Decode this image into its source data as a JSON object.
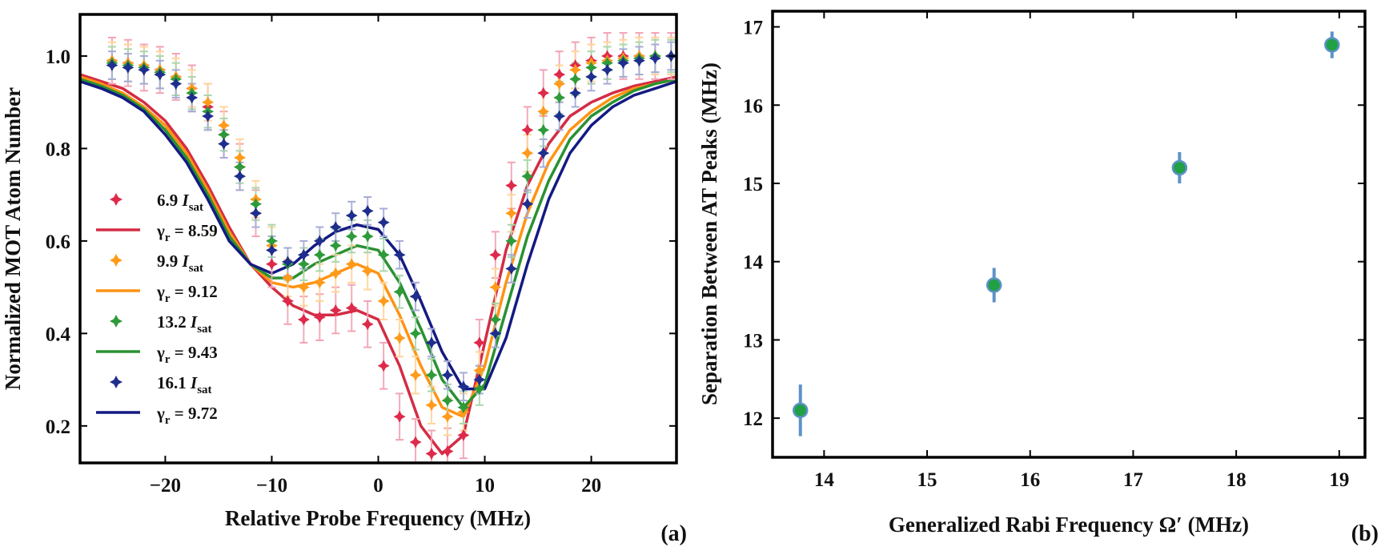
{
  "chart_data": [
    {
      "type": "scatter",
      "panel_label": "(a)",
      "xlabel": "Relative Probe Frequency (MHz)",
      "ylabel": "Normalized MOT Atom Number",
      "xlim": [
        -28,
        28
      ],
      "ylim": [
        0.12,
        1.09
      ],
      "xticks": [
        -20,
        -10,
        0,
        10,
        20
      ],
      "yticks": [
        0.2,
        0.4,
        0.6,
        0.8,
        1.0
      ],
      "xtick_labels": [
        "−20",
        "−10",
        "0",
        "10",
        "20"
      ],
      "ytick_labels": [
        "0.2",
        "0.4",
        "0.6",
        "0.8",
        "1.0"
      ],
      "grid": false,
      "legend_position": "left",
      "legend": [
        {
          "marker": "star",
          "color": "#DE2A4A",
          "text": "6.9 ",
          "italic": "I",
          "sub": "sat"
        },
        {
          "marker": "line",
          "color": "#D42C44",
          "text": "γ",
          "sub": "r",
          "value": " = 8.59"
        },
        {
          "marker": "star",
          "color": "#FF9A1A",
          "text": "9.9 ",
          "italic": "I",
          "sub": "sat"
        },
        {
          "marker": "line",
          "color": "#FF9312",
          "text": "γ",
          "sub": "r",
          "value": " = 9.12"
        },
        {
          "marker": "star",
          "color": "#2E9A3A",
          "text": "13.2 ",
          "italic": "I",
          "sub": "sat"
        },
        {
          "marker": "line",
          "color": "#2A9132",
          "text": "γ",
          "sub": "r",
          "value": " = 9.43"
        },
        {
          "marker": "star",
          "color": "#1E2E8C",
          "text": "16.1 ",
          "italic": "I",
          "sub": "sat"
        },
        {
          "marker": "line",
          "color": "#141A82",
          "text": "γ",
          "sub": "r",
          "value": " = 9.72"
        }
      ],
      "series": [
        {
          "name": "6.9 I_sat",
          "kind": "points",
          "color": "#DE2A4A",
          "error_color": "#F2A3B3",
          "x": [
            -25,
            -23.5,
            -22,
            -20.5,
            -19,
            -17.5,
            -16,
            -14.5,
            -13,
            -11.5,
            -10,
            -8.5,
            -7,
            -5.5,
            -4,
            -2.5,
            -1,
            0.5,
            2,
            3.5,
            5,
            6.5,
            8,
            9.5,
            11,
            12.5,
            14,
            15.5,
            17,
            18.5,
            20,
            21.5,
            23,
            24.5,
            26,
            27.5
          ],
          "y": [
            0.99,
            0.985,
            0.975,
            0.97,
            0.955,
            0.93,
            0.89,
            0.83,
            0.76,
            0.66,
            0.55,
            0.47,
            0.43,
            0.435,
            0.45,
            0.455,
            0.42,
            0.33,
            0.22,
            0.165,
            0.14,
            0.145,
            0.18,
            0.38,
            0.57,
            0.72,
            0.84,
            0.92,
            0.96,
            0.98,
            0.99,
            1.0,
            1.0,
            1.0,
            1.0,
            1.0
          ],
          "yerr": 0.05
        },
        {
          "name": "9.9 I_sat",
          "kind": "points",
          "color": "#FF9A1A",
          "error_color": "#FFD49A",
          "x": [
            -25,
            -23.5,
            -22,
            -20.5,
            -19,
            -17.5,
            -16,
            -14.5,
            -13,
            -11.5,
            -10,
            -8.5,
            -7,
            -5.5,
            -4,
            -2.5,
            -1,
            0.5,
            2,
            3.5,
            5,
            6.5,
            8,
            9.5,
            11,
            12.5,
            14,
            15.5,
            17,
            18.5,
            20,
            21.5,
            23,
            24.5,
            26,
            27.5
          ],
          "y": [
            0.99,
            0.985,
            0.98,
            0.97,
            0.955,
            0.93,
            0.9,
            0.85,
            0.78,
            0.69,
            0.59,
            0.52,
            0.5,
            0.51,
            0.53,
            0.55,
            0.535,
            0.47,
            0.39,
            0.31,
            0.245,
            0.22,
            0.23,
            0.32,
            0.5,
            0.66,
            0.79,
            0.88,
            0.94,
            0.97,
            0.985,
            0.99,
            0.995,
            1.0,
            1.0,
            1.0
          ],
          "yerr": 0.04
        },
        {
          "name": "13.2 I_sat",
          "kind": "points",
          "color": "#2E9A3A",
          "error_color": "#A9D6AD",
          "x": [
            -25,
            -23.5,
            -22,
            -20.5,
            -19,
            -17.5,
            -16,
            -14.5,
            -13,
            -11.5,
            -10,
            -8.5,
            -7,
            -5.5,
            -4,
            -2.5,
            -1,
            0.5,
            2,
            3.5,
            5,
            6.5,
            8,
            9.5,
            11,
            12.5,
            14,
            15.5,
            17,
            18.5,
            20,
            21.5,
            23,
            24.5,
            26,
            27.5
          ],
          "y": [
            0.985,
            0.98,
            0.975,
            0.965,
            0.95,
            0.92,
            0.88,
            0.83,
            0.76,
            0.68,
            0.6,
            0.55,
            0.55,
            0.57,
            0.59,
            0.61,
            0.61,
            0.57,
            0.49,
            0.4,
            0.31,
            0.255,
            0.24,
            0.28,
            0.43,
            0.6,
            0.74,
            0.84,
            0.91,
            0.95,
            0.975,
            0.985,
            0.99,
            0.995,
            1.0,
            1.0
          ],
          "yerr": 0.035
        },
        {
          "name": "16.1 I_sat",
          "kind": "points",
          "color": "#1E2E8C",
          "error_color": "#A6ACD6",
          "x": [
            -25,
            -23.5,
            -22,
            -20.5,
            -19,
            -17.5,
            -16,
            -14.5,
            -13,
            -11.5,
            -10,
            -8.5,
            -7,
            -5.5,
            -4,
            -2.5,
            -1,
            0.5,
            2,
            3.5,
            5,
            6.5,
            8,
            9.5,
            11,
            12.5,
            14,
            15.5,
            17,
            18.5,
            20,
            21.5,
            23,
            24.5,
            26,
            27.5
          ],
          "y": [
            0.98,
            0.975,
            0.97,
            0.96,
            0.94,
            0.91,
            0.87,
            0.81,
            0.74,
            0.66,
            0.58,
            0.555,
            0.57,
            0.6,
            0.63,
            0.655,
            0.665,
            0.64,
            0.57,
            0.48,
            0.38,
            0.31,
            0.285,
            0.3,
            0.4,
            0.54,
            0.68,
            0.79,
            0.87,
            0.92,
            0.955,
            0.97,
            0.985,
            0.99,
            0.995,
            1.0
          ],
          "yerr": 0.03
        },
        {
          "name": "γr = 8.59",
          "kind": "curve",
          "color": "#D42C44",
          "x": [
            -28,
            -26,
            -24,
            -22,
            -20,
            -18,
            -16,
            -14,
            -12,
            -10,
            -8,
            -6,
            -4,
            -2,
            0,
            2,
            4,
            6,
            8,
            10,
            12,
            14,
            16,
            18,
            20,
            22,
            24,
            26,
            28
          ],
          "y": [
            0.96,
            0.945,
            0.93,
            0.9,
            0.86,
            0.8,
            0.72,
            0.63,
            0.55,
            0.5,
            0.46,
            0.44,
            0.44,
            0.45,
            0.43,
            0.33,
            0.2,
            0.14,
            0.18,
            0.38,
            0.58,
            0.72,
            0.81,
            0.87,
            0.9,
            0.92,
            0.935,
            0.945,
            0.955
          ]
        },
        {
          "name": "γr = 9.12",
          "kind": "curve",
          "color": "#FF9312",
          "x": [
            -28,
            -26,
            -24,
            -22,
            -20,
            -18,
            -16,
            -14,
            -12,
            -10,
            -8,
            -6,
            -4,
            -2,
            0,
            2,
            4,
            6,
            8,
            10,
            12,
            14,
            16,
            18,
            20,
            22,
            24,
            26,
            28
          ],
          "y": [
            0.955,
            0.94,
            0.92,
            0.89,
            0.85,
            0.79,
            0.71,
            0.62,
            0.55,
            0.51,
            0.5,
            0.51,
            0.53,
            0.55,
            0.53,
            0.44,
            0.33,
            0.24,
            0.22,
            0.33,
            0.51,
            0.66,
            0.77,
            0.84,
            0.88,
            0.91,
            0.93,
            0.94,
            0.95
          ]
        },
        {
          "name": "γr = 9.43",
          "kind": "curve",
          "color": "#2A9132",
          "x": [
            -28,
            -26,
            -24,
            -22,
            -20,
            -18,
            -16,
            -14,
            -12,
            -10,
            -8,
            -6,
            -4,
            -2,
            0,
            2,
            4,
            6,
            8,
            10,
            12,
            14,
            16,
            18,
            20,
            22,
            24,
            26,
            28
          ],
          "y": [
            0.95,
            0.935,
            0.915,
            0.885,
            0.84,
            0.78,
            0.7,
            0.61,
            0.55,
            0.52,
            0.52,
            0.55,
            0.57,
            0.59,
            0.58,
            0.51,
            0.41,
            0.3,
            0.24,
            0.29,
            0.45,
            0.61,
            0.73,
            0.82,
            0.87,
            0.9,
            0.925,
            0.94,
            0.95
          ]
        },
        {
          "name": "γr = 9.72",
          "kind": "curve",
          "color": "#141A82",
          "x": [
            -28,
            -26,
            -24,
            -22,
            -20,
            -18,
            -16,
            -14,
            -12,
            -10,
            -8,
            -6,
            -4,
            -2,
            0,
            2,
            4,
            6,
            8,
            10,
            12,
            14,
            16,
            18,
            20,
            22,
            24,
            26,
            28
          ],
          "y": [
            0.945,
            0.93,
            0.91,
            0.88,
            0.83,
            0.77,
            0.69,
            0.6,
            0.55,
            0.53,
            0.55,
            0.59,
            0.62,
            0.635,
            0.625,
            0.57,
            0.47,
            0.36,
            0.28,
            0.28,
            0.39,
            0.55,
            0.69,
            0.79,
            0.85,
            0.89,
            0.915,
            0.93,
            0.945
          ]
        }
      ]
    },
    {
      "type": "scatter",
      "panel_label": "(b)",
      "xlabel": "Generalized Rabi Frequency Ω′ (MHz)",
      "ylabel": "Separation Between AT Peaks (MHz)",
      "xlim": [
        13.5,
        19.25
      ],
      "ylim": [
        11.5,
        17.2
      ],
      "xticks": [
        14,
        15,
        16,
        17,
        18,
        19
      ],
      "yticks": [
        12,
        13,
        14,
        15,
        16,
        17
      ],
      "xtick_labels": [
        "14",
        "15",
        "16",
        "17",
        "18",
        "19"
      ],
      "ytick_labels": [
        "12",
        "13",
        "14",
        "15",
        "16",
        "17"
      ],
      "grid": false,
      "marker_color": "#21A045",
      "error_color": "#5C92C8",
      "x": [
        13.77,
        15.65,
        17.45,
        18.93
      ],
      "y": [
        12.1,
        13.7,
        15.2,
        16.77
      ],
      "yerr": [
        0.33,
        0.22,
        0.2,
        0.17
      ]
    }
  ]
}
